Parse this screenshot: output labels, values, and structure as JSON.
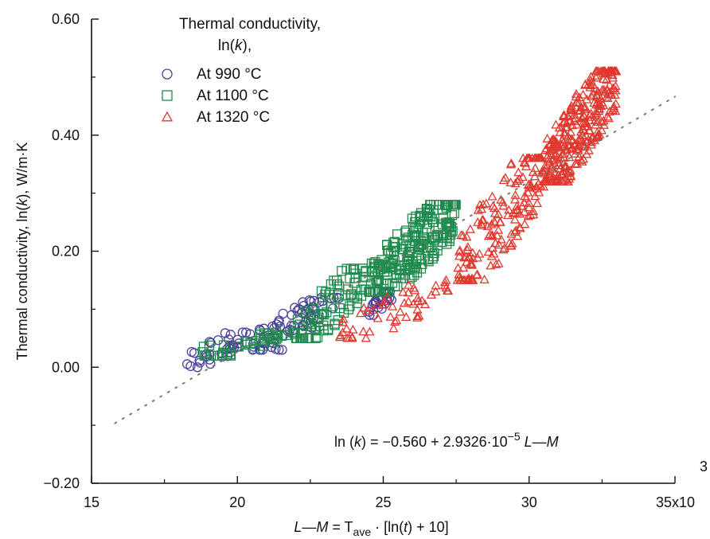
{
  "chart_data": {
    "type": "scatter",
    "title": "",
    "xlabel": "L—M = Tave · [ln(t) + 10]",
    "ylabel": "Thermal conductivity, ln(k), W/m·K",
    "xlim": [
      15000,
      35000
    ],
    "ylim": [
      -0.2,
      0.6
    ],
    "x_ticks": [
      15000,
      20000,
      25000,
      30000,
      35000
    ],
    "x_tick_labels": [
      "15",
      "20",
      "25",
      "30",
      "35x10"
    ],
    "x_tick_exponent": "3",
    "y_ticks": [
      -0.2,
      0.0,
      0.2,
      0.4,
      0.6
    ],
    "y_tick_labels": [
      "−0.20",
      "0.00",
      "0.20",
      "0.40",
      "0.60"
    ],
    "grid": false,
    "legend": {
      "title_line1": "Thermal conductivity,",
      "title_line2": "ln(k),",
      "placement": "top-left"
    },
    "series": [
      {
        "name": "At 990 °C",
        "marker": "circle",
        "color": "#4b3f9c",
        "clusters": [
          {
            "x": [
              18000,
              20500
            ],
            "y": [
              0.0,
              0.06
            ],
            "n": 35
          },
          {
            "x": [
              20500,
              23500
            ],
            "y": [
              0.03,
              0.12
            ],
            "n": 70
          },
          {
            "x": [
              24500,
              25300
            ],
            "y": [
              0.09,
              0.13
            ],
            "n": 25
          }
        ]
      },
      {
        "name": "At 1100 °C",
        "marker": "square",
        "color": "#1f8a4c",
        "clusters": [
          {
            "x": [
              18700,
              22000
            ],
            "y": [
              0.02,
              0.06
            ],
            "n": 40
          },
          {
            "x": [
              22000,
              24500
            ],
            "y": [
              0.05,
              0.17
            ],
            "n": 80
          },
          {
            "x": [
              24500,
              27500
            ],
            "y": [
              0.13,
              0.28
            ],
            "n": 230
          }
        ]
      },
      {
        "name": "At 1320 °C",
        "marker": "triangle",
        "color": "#e0392f",
        "clusters": [
          {
            "x": [
              23500,
              27500
            ],
            "y": [
              0.05,
              0.15
            ],
            "n": 55
          },
          {
            "x": [
              27500,
              30500
            ],
            "y": [
              0.15,
              0.36
            ],
            "n": 170
          },
          {
            "x": [
              30500,
              33000
            ],
            "y": [
              0.32,
              0.51
            ],
            "n": 320
          }
        ]
      }
    ],
    "fit": {
      "intercept": -0.56,
      "slope": 2.9326e-05,
      "x_range": [
        15800,
        35000
      ]
    },
    "annotation": {
      "prefix": "ln (k) = −0.560 + 2.9326·10",
      "exponent": "−5",
      "suffix": " L—M"
    }
  }
}
